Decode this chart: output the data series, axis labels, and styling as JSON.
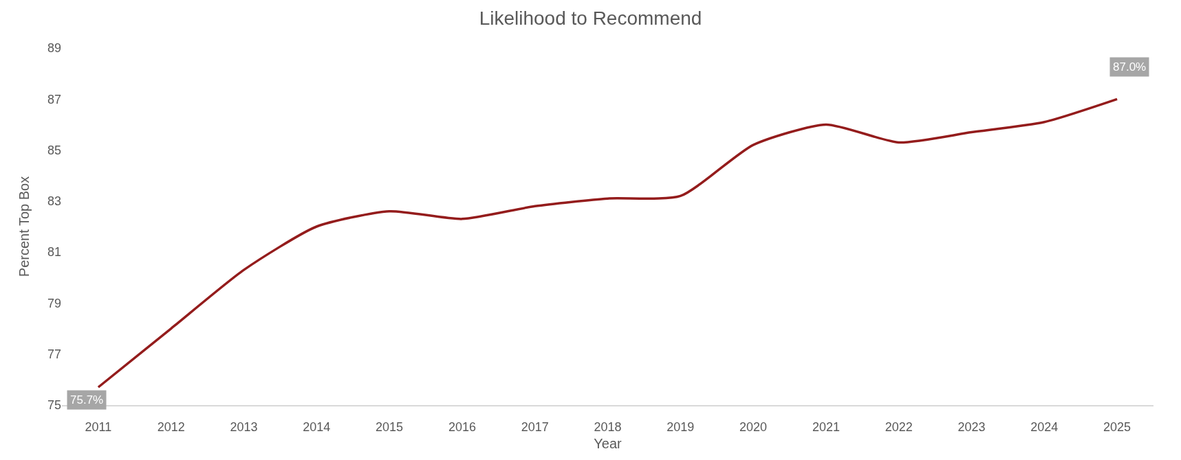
{
  "chart_data": {
    "type": "line",
    "title": "Likelihood to Recommend",
    "xlabel": "Year",
    "ylabel": "Percent Top Box",
    "categories": [
      "2011",
      "2012",
      "2013",
      "2014",
      "2015",
      "2016",
      "2017",
      "2018",
      "2019",
      "2020",
      "2021",
      "2022",
      "2023",
      "2024",
      "2025"
    ],
    "series": [
      {
        "color": "#941c1c",
        "values": [
          75.7,
          78.0,
          80.3,
          82.0,
          82.6,
          82.3,
          82.8,
          83.1,
          83.2,
          85.2,
          86.0,
          85.3,
          85.7,
          86.1,
          87.0
        ],
        "value_labels": [
          "75.7%",
          null,
          null,
          null,
          null,
          null,
          null,
          null,
          null,
          null,
          null,
          null,
          null,
          null,
          "87.0%"
        ]
      }
    ],
    "ylim": [
      75,
      89
    ],
    "yticks": [
      75,
      77,
      79,
      81,
      83,
      85,
      87,
      89
    ],
    "grid": false,
    "marker": "none",
    "line_style": "solid"
  }
}
